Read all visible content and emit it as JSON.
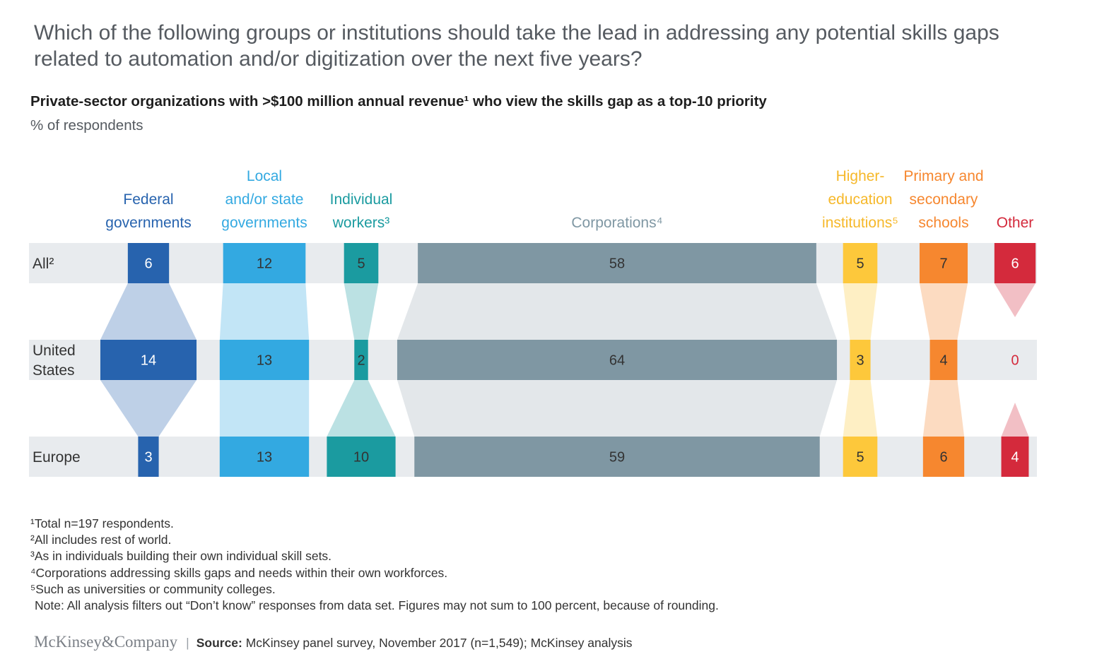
{
  "title": "Which of the following groups or institutions should take the lead in addressing any potential skills gaps related to automation and/or digitization over the next five years?",
  "subtitle": "Private-sector organizations with >$100 million annual revenue¹ who view the skills gap as a top-10 priority",
  "unit": "% of respondents",
  "colors": {
    "federal": "#2763ae",
    "local": "#33a9e1",
    "workers": "#1b9ba0",
    "corporations": "#7f97a3",
    "higher_ed": "#fdc83b",
    "schools": "#f6872f",
    "other": "#d42a3c",
    "row_band": "#e8ebee"
  },
  "chart_data": {
    "type": "bar",
    "categories": [
      "Federal governments",
      "Local and/or state governments",
      "Individual workers³",
      "Corporations⁴",
      "Higher-education institutions⁵",
      "Primary and secondary schools",
      "Other"
    ],
    "column_headers": [
      [
        "Federal",
        "governments"
      ],
      [
        "Local",
        "and/or state",
        "governments"
      ],
      [
        "Individual",
        "workers³"
      ],
      [
        "Corporations⁴"
      ],
      [
        "Higher-",
        "education",
        "institutions⁵"
      ],
      [
        "Primary and",
        "secondary",
        "schools"
      ],
      [
        "Other"
      ]
    ],
    "rows": [
      {
        "label": [
          "All²"
        ],
        "values": [
          6,
          12,
          5,
          58,
          5,
          7,
          6
        ]
      },
      {
        "label": [
          "United",
          "States"
        ],
        "values": [
          14,
          13,
          2,
          64,
          3,
          4,
          0
        ]
      },
      {
        "label": [
          "Europe"
        ],
        "values": [
          3,
          13,
          10,
          59,
          5,
          6,
          4
        ]
      }
    ]
  },
  "footnotes": [
    "¹Total n=197 respondents.",
    "²All includes rest of world.",
    "³As in individuals building their own individual skill sets.",
    "⁴Corporations addressing skills gaps and needs within their own workforces.",
    "⁵Such as universities or community colleges."
  ],
  "note": "Note: All analysis filters out “Don’t know” responses from data set. Figures may not sum to 100 percent, because of rounding.",
  "logo": "McKinsey&Company",
  "source": {
    "label": "Source:",
    "text": " McKinsey panel survey, November 2017 (n=1,549); McKinsey analysis"
  }
}
